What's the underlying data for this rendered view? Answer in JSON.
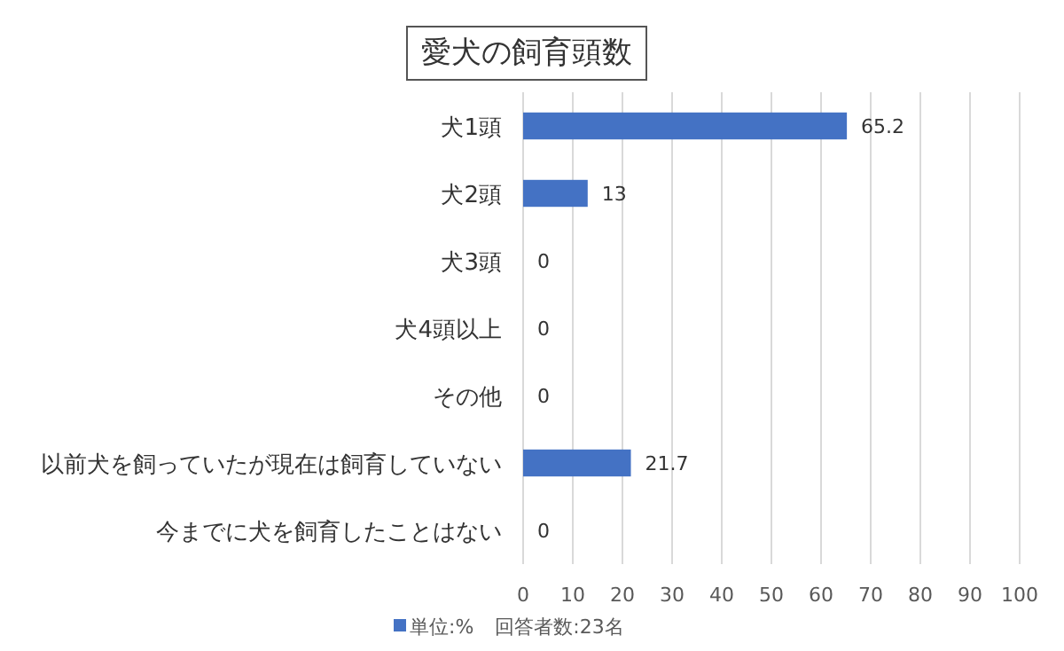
{
  "chart_data": {
    "type": "bar",
    "orientation": "horizontal",
    "title": "愛犬の飼育頭数",
    "categories": [
      "犬1頭",
      "犬2頭",
      "犬3頭",
      "犬4頭以上",
      "その他",
      "以前犬を飼っていたが現在は飼育していない",
      "今までに犬を飼育したことはない"
    ],
    "series": [
      {
        "name": "単位:%",
        "color": "#4472c4",
        "values": [
          65.2,
          13,
          0,
          0,
          0,
          21.7,
          0
        ]
      }
    ],
    "xlim": [
      0,
      100
    ],
    "xticks": [
      0,
      10,
      20,
      30,
      40,
      50,
      60,
      70,
      80,
      90,
      100
    ],
    "grid": "x",
    "legend": "bottom",
    "data_labels": true,
    "annotations": [
      "回答者数:23名"
    ]
  }
}
